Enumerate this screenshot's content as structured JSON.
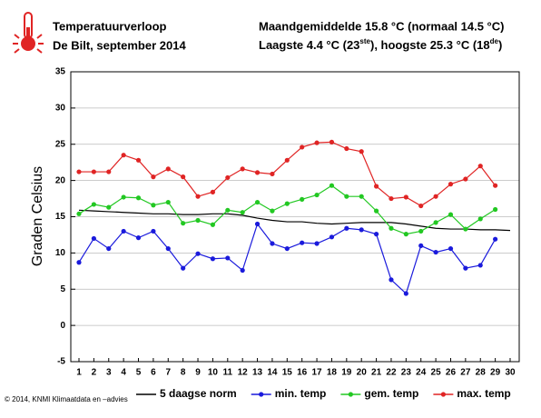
{
  "chart_data": {
    "type": "line",
    "title": "Temperatuurverloop",
    "subtitle": "De Bilt, september 2014",
    "annotations": [
      "Maandgemiddelde 15.8 °C (normaal 14.5 °C)",
      [
        "Laagste 4.4 °C (23",
        "ste",
        "), hoogste 25.3 °C (18",
        "de",
        ")"
      ]
    ],
    "credit": "© 2014, KNMI Klimaatdata en –advies",
    "y_label": "Graden Celsius",
    "categories": [
      1,
      2,
      3,
      4,
      5,
      6,
      7,
      8,
      9,
      10,
      11,
      12,
      13,
      14,
      15,
      16,
      17,
      18,
      19,
      20,
      21,
      22,
      23,
      24,
      25,
      26,
      27,
      28,
      29,
      30
    ],
    "series": [
      {
        "name": "5 daagse norm",
        "color": "#000000",
        "markers": false,
        "values": [
          15.9,
          15.8,
          15.7,
          15.6,
          15.5,
          15.4,
          15.4,
          15.3,
          15.3,
          15.4,
          15.4,
          15.2,
          14.8,
          14.5,
          14.3,
          14.3,
          14.1,
          14.0,
          14.1,
          14.2,
          14.2,
          14.2,
          14.0,
          13.7,
          13.4,
          13.3,
          13.3,
          13.2,
          13.2,
          13.1
        ]
      },
      {
        "name": "min. temp",
        "color": "#1a1adc",
        "markers": true,
        "values": [
          8.7,
          12.0,
          10.6,
          13.0,
          12.1,
          13.0,
          10.6,
          7.9,
          9.9,
          9.2,
          9.3,
          7.6,
          14.0,
          11.3,
          10.6,
          11.4,
          11.3,
          12.2,
          13.4,
          13.2,
          12.6,
          6.3,
          4.4,
          11.0,
          10.1,
          10.6,
          7.9,
          8.3,
          11.9,
          null
        ]
      },
      {
        "name": "gem. temp",
        "color": "#22c822",
        "markers": true,
        "values": [
          15.4,
          16.7,
          16.3,
          17.7,
          17.6,
          16.6,
          17.0,
          14.1,
          14.5,
          13.9,
          15.9,
          15.6,
          17.0,
          15.8,
          16.8,
          17.4,
          18.0,
          19.3,
          17.8,
          17.8,
          15.8,
          13.4,
          12.6,
          13.0,
          14.2,
          15.3,
          13.3,
          14.7,
          16.0,
          null
        ]
      },
      {
        "name": "max. temp",
        "color": "#e02424",
        "markers": true,
        "values": [
          21.2,
          21.2,
          21.2,
          23.5,
          22.8,
          20.5,
          21.6,
          20.5,
          17.8,
          18.4,
          20.4,
          21.6,
          21.1,
          20.9,
          22.8,
          24.6,
          25.2,
          25.3,
          24.4,
          24.0,
          19.2,
          17.5,
          17.7,
          16.5,
          17.8,
          19.5,
          20.2,
          22.0,
          19.3,
          null
        ]
      }
    ],
    "ylim": [
      -5,
      35
    ],
    "yticks": [
      -5,
      0,
      5,
      10,
      15,
      20,
      25,
      30,
      35
    ],
    "grid": true
  }
}
